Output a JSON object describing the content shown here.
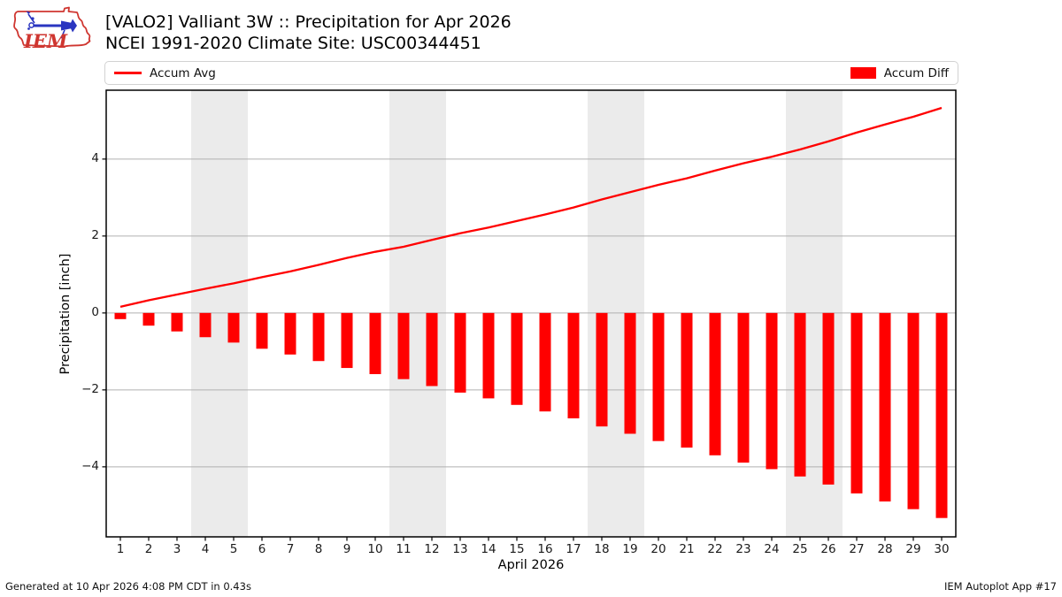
{
  "header": {
    "title_line1": "[VALO2] Valliant 3W :: Precipitation for Apr 2026",
    "title_line2": "NCEI 1991-2020 Climate Site: USC00344451"
  },
  "logo": {
    "text": "IEM"
  },
  "legend": {
    "left_label": "Accum Avg",
    "right_label": "Accum Diff"
  },
  "footer": {
    "left": "Generated at 10 Apr 2026 4:08 PM CDT in 0.43s",
    "right": "IEM Autoplot App #17"
  },
  "chart_data": {
    "type": "line+bar",
    "title": "[VALO2] Valliant 3W :: Precipitation for Apr 2026",
    "subtitle": "NCEI 1991-2020 Climate Site: USC00344451",
    "xlabel": "April 2026",
    "ylabel": "Precipitation [inch]",
    "x": [
      1,
      2,
      3,
      4,
      5,
      6,
      7,
      8,
      9,
      10,
      11,
      12,
      13,
      14,
      15,
      16,
      17,
      18,
      19,
      20,
      21,
      22,
      23,
      24,
      25,
      26,
      27,
      28,
      29,
      30
    ],
    "series": [
      {
        "name": "Accum Avg",
        "type": "line",
        "color": "#ff0000",
        "values": [
          0.16,
          0.33,
          0.48,
          0.63,
          0.77,
          0.93,
          1.08,
          1.25,
          1.43,
          1.59,
          1.72,
          1.9,
          2.07,
          2.22,
          2.39,
          2.56,
          2.74,
          2.95,
          3.14,
          3.33,
          3.5,
          3.7,
          3.89,
          4.06,
          4.25,
          4.46,
          4.69,
          4.9,
          5.1,
          5.33
        ]
      },
      {
        "name": "Accum Diff",
        "type": "bar",
        "color": "#ff0000",
        "values": [
          -0.16,
          -0.33,
          -0.48,
          -0.63,
          -0.77,
          -0.93,
          -1.08,
          -1.25,
          -1.43,
          -1.59,
          -1.72,
          -1.9,
          -2.07,
          -2.22,
          -2.39,
          -2.56,
          -2.74,
          -2.95,
          -3.14,
          -3.33,
          -3.5,
          -3.7,
          -3.89,
          -4.06,
          -4.25,
          -4.46,
          -4.69,
          -4.9,
          -5.1,
          -5.33
        ]
      }
    ],
    "ylim": [
      -5.82,
      5.79
    ],
    "yticks": [
      -4,
      -2,
      0,
      2,
      4
    ],
    "ytick_labels": [
      "−4",
      "−2",
      "0",
      "2",
      "4"
    ],
    "weekend_bands": [
      [
        3.5,
        5.5
      ],
      [
        10.5,
        12.5
      ],
      [
        17.5,
        19.5
      ],
      [
        24.5,
        26.5
      ]
    ],
    "grid": true,
    "legend_position": "top row: line legend upper-left, bar legend upper-right",
    "colors": {
      "band": "#ebebeb",
      "grid": "#b0b0b0",
      "frame": "#000000",
      "accent": "#ff0000"
    }
  }
}
